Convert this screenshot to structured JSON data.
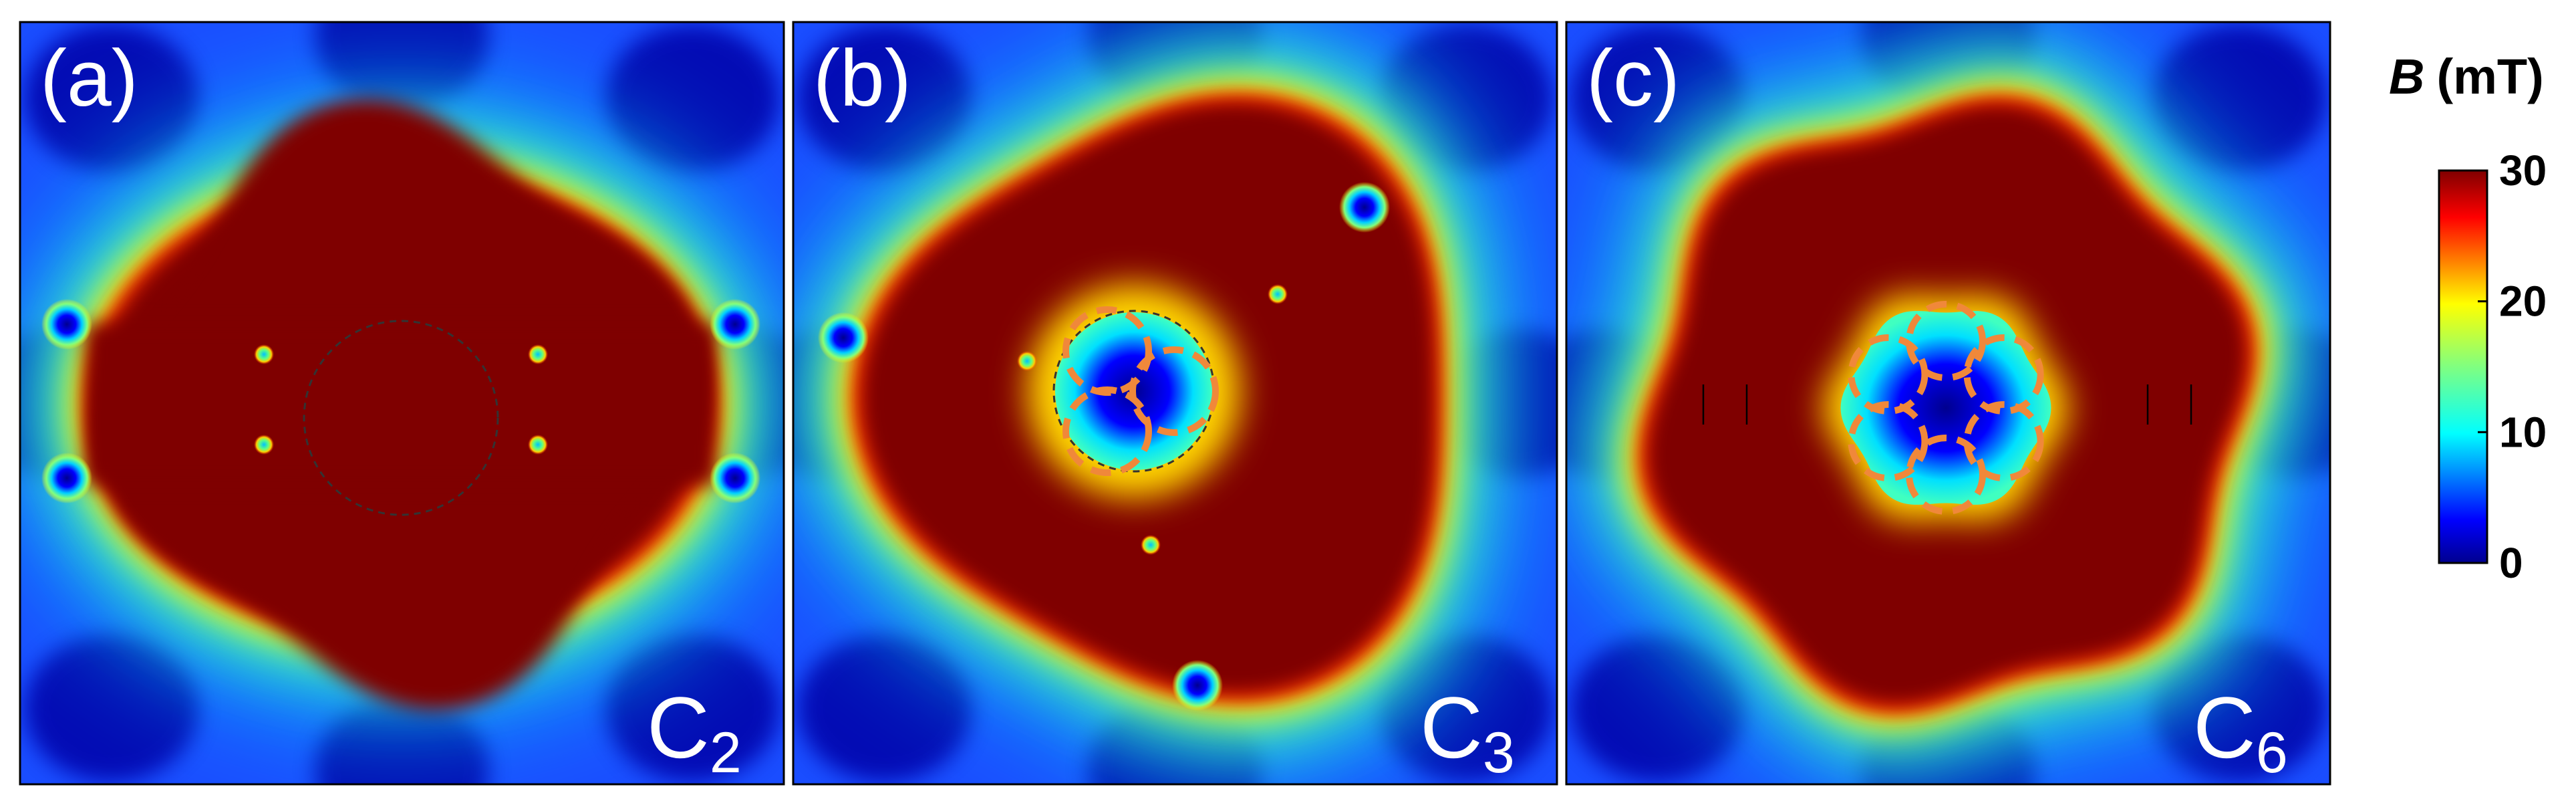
{
  "chart_data": {
    "type": "heatmap",
    "quantity": "B",
    "unit": "(mT)",
    "colorscale": "jet",
    "colorbar": {
      "min": 0,
      "max": 30,
      "ticks": [
        {
          "value": 0,
          "label": "0"
        },
        {
          "value": 10,
          "label": "10"
        },
        {
          "value": 20,
          "label": "20"
        },
        {
          "value": 30,
          "label": "30"
        }
      ]
    },
    "panels": [
      {
        "label": "(a)",
        "symmetry": "C",
        "order": "2",
        "fold": 2
      },
      {
        "label": "(b)",
        "symmetry": "C",
        "order": "3",
        "fold": 3
      },
      {
        "label": "(c)",
        "symmetry": "C",
        "order": "6",
        "fold": 6
      }
    ]
  },
  "colors": {
    "saturated": "#7f0000",
    "low": "#00008f",
    "marker_outline": "#000000",
    "vortex_ring": "#f0883a"
  }
}
